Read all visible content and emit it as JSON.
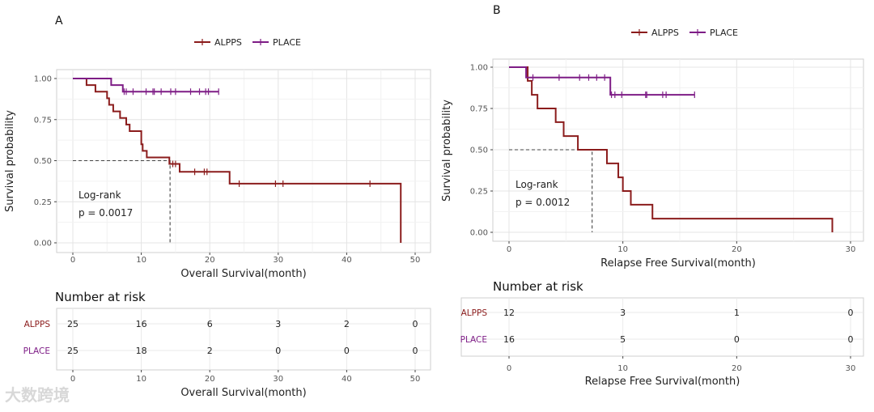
{
  "watermark": "大数跨境",
  "chart_data": [
    {
      "type": "line",
      "subtype": "kaplan-meier",
      "panel": "A",
      "xlabel": "Overall Survival(month)",
      "ylabel": "Survival probability",
      "xlim": [
        0,
        50
      ],
      "ylim": [
        0,
        1
      ],
      "xticks": [
        0,
        10,
        20,
        30,
        40,
        50
      ],
      "yticks": [
        "0.00",
        "0.25",
        "0.50",
        "0.75",
        "1.00"
      ],
      "grid": true,
      "legend": {
        "placement": "top",
        "entries": [
          "ALPPS",
          "PLACE"
        ]
      },
      "annotation": [
        "Log-rank",
        "p = 0.0017"
      ],
      "median": 14.2,
      "series": [
        {
          "name": "ALPPS",
          "color": "#8b1c1c",
          "steps": [
            [
              0,
              1
            ],
            [
              2.0,
              0.96
            ],
            [
              3.3,
              0.92
            ],
            [
              5.0,
              0.88
            ],
            [
              5.3,
              0.84
            ],
            [
              5.9,
              0.8
            ],
            [
              6.9,
              0.76
            ],
            [
              7.8,
              0.72
            ],
            [
              8.3,
              0.68
            ],
            [
              10.0,
              0.6
            ],
            [
              10.2,
              0.56
            ],
            [
              10.8,
              0.52
            ],
            [
              14.1,
              0.48
            ],
            [
              15.6,
              0.432
            ],
            [
              22.9,
              0.36
            ],
            [
              47.9,
              0.0
            ]
          ],
          "end": 47.9,
          "censored": [
            14.6,
            15.0,
            17.8,
            19.2,
            19.6,
            24.3,
            29.6,
            30.7,
            43.4
          ]
        },
        {
          "name": "PLACE",
          "color": "#7e1d86",
          "steps": [
            [
              0,
              1
            ],
            [
              5.6,
              0.96
            ],
            [
              7.3,
              0.92
            ]
          ],
          "end": 21.3,
          "censored": [
            7.5,
            7.8,
            8.8,
            10.7,
            11.7,
            11.9,
            12.9,
            14.3,
            15.0,
            17.2,
            18.5,
            19.4,
            19.8,
            21.3
          ]
        }
      ],
      "risk_table": {
        "title": "Number at risk",
        "xlabel": "Overall Survival(month)",
        "times": [
          0,
          10,
          20,
          30,
          40,
          50
        ],
        "rows": [
          {
            "name": "ALPPS",
            "values": [
              25,
              16,
              6,
              3,
              2,
              0
            ]
          },
          {
            "name": "PLACE",
            "values": [
              25,
              18,
              2,
              0,
              0,
              0
            ]
          }
        ]
      }
    },
    {
      "type": "line",
      "subtype": "kaplan-meier",
      "panel": "B",
      "xlabel": "Relapse Free Survival(month)",
      "ylabel": "Survival probability",
      "xlim": [
        0,
        30
      ],
      "ylim": [
        0,
        1
      ],
      "xticks": [
        0,
        10,
        20,
        30
      ],
      "yticks": [
        "0.00",
        "0.25",
        "0.50",
        "0.75",
        "1.00"
      ],
      "grid": true,
      "legend": {
        "placement": "top",
        "entries": [
          "ALPPS",
          "PLACE"
        ]
      },
      "annotation": [
        "Log-rank",
        "p = 0.0012"
      ],
      "median": 7.3,
      "series": [
        {
          "name": "ALPPS",
          "color": "#8b1c1c",
          "steps": [
            [
              0,
              1
            ],
            [
              1.64,
              0.917
            ],
            [
              2.0,
              0.833
            ],
            [
              2.5,
              0.75
            ],
            [
              4.1,
              0.667
            ],
            [
              4.8,
              0.583
            ],
            [
              6.05,
              0.5
            ],
            [
              8.6,
              0.417
            ],
            [
              9.6,
              0.333
            ],
            [
              10.0,
              0.25
            ],
            [
              10.7,
              0.167
            ],
            [
              12.6,
              0.083
            ],
            [
              28.4,
              0.0
            ]
          ],
          "end": 28.4,
          "censored": []
        },
        {
          "name": "PLACE",
          "color": "#7e1d86",
          "steps": [
            [
              0,
              1
            ],
            [
              1.5,
              0.9375
            ],
            [
              8.9,
              0.833
            ]
          ],
          "end": 16.3,
          "censored": [
            2.1,
            4.4,
            6.2,
            7.0,
            7.7,
            8.4,
            9.0,
            9.3,
            9.9,
            12.0,
            12.1,
            13.5,
            13.8,
            16.3
          ]
        }
      ],
      "risk_table": {
        "title": "Number at risk",
        "xlabel": "Relapse Free Survival(month)",
        "times": [
          0,
          10,
          20,
          30
        ],
        "rows": [
          {
            "name": "ALPPS",
            "values": [
              12,
              3,
              1,
              0
            ]
          },
          {
            "name": "PLACE",
            "values": [
              16,
              5,
              0,
              0
            ]
          }
        ]
      }
    }
  ]
}
